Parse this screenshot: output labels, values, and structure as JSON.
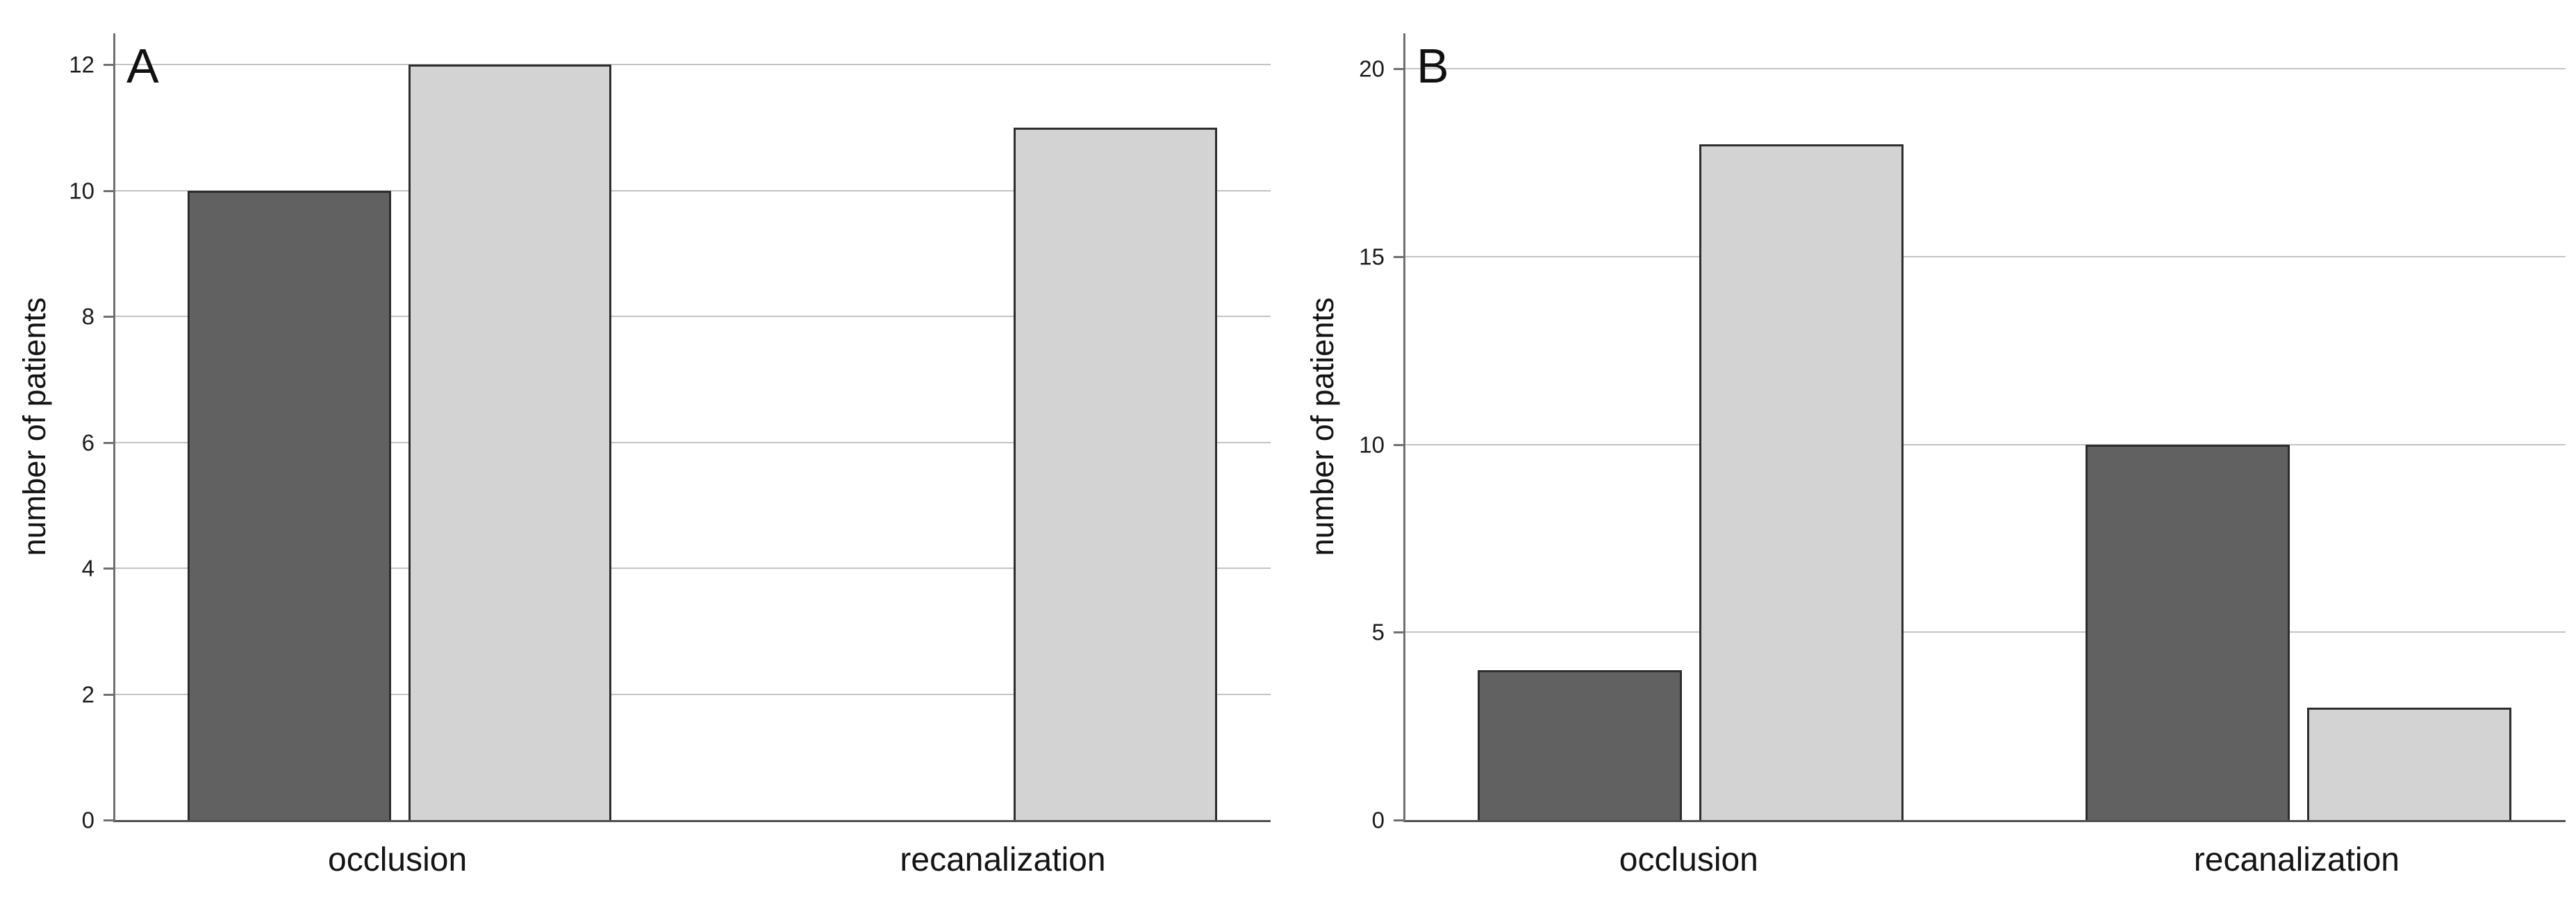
{
  "figure": {
    "background": "#ffffff",
    "colors": {
      "dark_bar": "#616161",
      "light_bar": "#d3d3d3",
      "bar_border": "#2d2d2d",
      "gridline": "#c4c4c4",
      "axis": "#707070",
      "baseline": "#4f4f4f",
      "text": "#141414"
    }
  },
  "chart_data": [
    {
      "type": "bar",
      "panel_label": "A",
      "title": "",
      "xlabel": "",
      "ylabel": "number of patients",
      "categories": [
        "occlusion",
        "recanalization"
      ],
      "series": [
        {
          "name": "dark_gray",
          "color_key": "dark_bar",
          "values": [
            10,
            0
          ]
        },
        {
          "name": "light_gray",
          "color_key": "light_bar",
          "values": [
            12,
            11
          ]
        }
      ],
      "yticks": [
        0,
        2,
        4,
        6,
        8,
        10,
        12
      ],
      "ylim": [
        0,
        12.5
      ],
      "grid": "horizontal",
      "legend": "none"
    },
    {
      "type": "bar",
      "panel_label": "B",
      "title": "",
      "xlabel": "",
      "ylabel": "number of patients",
      "categories": [
        "occlusion",
        "recanalization"
      ],
      "series": [
        {
          "name": "dark_gray",
          "color_key": "dark_bar",
          "values": [
            4,
            10
          ]
        },
        {
          "name": "light_gray",
          "color_key": "light_bar",
          "values": [
            18,
            3
          ]
        }
      ],
      "yticks": [
        0,
        5,
        10,
        15,
        20
      ],
      "ylim": [
        0,
        20.95
      ],
      "grid": "horizontal",
      "legend": "none"
    }
  ]
}
